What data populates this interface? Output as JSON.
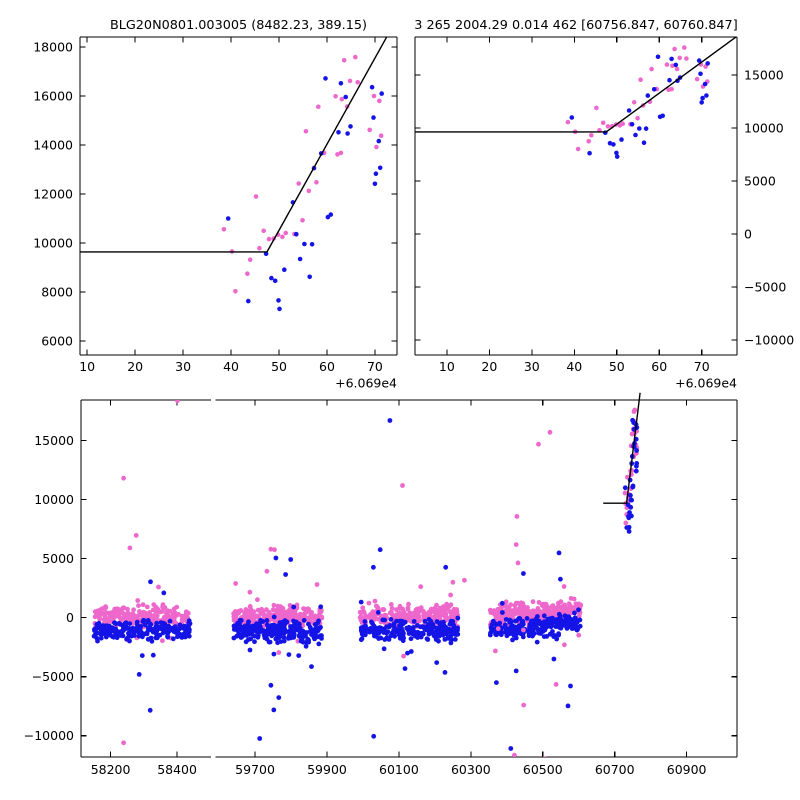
{
  "chart_data": {
    "type": "scatter",
    "description": "Microlensing light-curve fit figure: two zoomed event panels (top) and full multi-season light curve with broken x-axis (bottom)",
    "series_colors": {
      "magenta": "#EE68CC",
      "blue": "#1414E6",
      "model_line": "#000000"
    },
    "marker_radius": 2.3,
    "event_points": {
      "x_offset_base": 60690,
      "magenta": [
        [
          38.5,
          10560
        ],
        [
          40.2,
          9660
        ],
        [
          40.9,
          8030
        ],
        [
          43.4,
          8750
        ],
        [
          44.0,
          9320
        ],
        [
          45.2,
          11900
        ],
        [
          45.9,
          9790
        ],
        [
          46.8,
          10500
        ],
        [
          47.9,
          10160
        ],
        [
          48.9,
          10180
        ],
        [
          49.8,
          10340
        ],
        [
          50.7,
          10250
        ],
        [
          51.4,
          10410
        ],
        [
          53.2,
          10370
        ],
        [
          54.1,
          12430
        ],
        [
          54.9,
          10930
        ],
        [
          55.6,
          14560
        ],
        [
          56.2,
          12130
        ],
        [
          57.8,
          12480
        ],
        [
          58.2,
          15560
        ],
        [
          59.4,
          13680
        ],
        [
          61.8,
          15990
        ],
        [
          62.2,
          13620
        ],
        [
          62.9,
          13680
        ],
        [
          63.1,
          15870
        ],
        [
          63.6,
          17460
        ],
        [
          64.2,
          15570
        ],
        [
          64.8,
          16620
        ],
        [
          65.9,
          17590
        ],
        [
          66.4,
          16560
        ],
        [
          68.9,
          14620
        ],
        [
          69.8,
          16000
        ],
        [
          70.3,
          13920
        ],
        [
          70.9,
          15800
        ],
        [
          71.3,
          14380
        ]
      ],
      "blue": [
        [
          39.4,
          11000
        ],
        [
          43.6,
          7630
        ],
        [
          47.3,
          9560
        ],
        [
          48.4,
          8570
        ],
        [
          49.2,
          8460
        ],
        [
          49.9,
          7660
        ],
        [
          50.1,
          7310
        ],
        [
          51.1,
          8910
        ],
        [
          52.9,
          11660
        ],
        [
          53.6,
          10360
        ],
        [
          54.4,
          9350
        ],
        [
          55.3,
          9960
        ],
        [
          56.4,
          8620
        ],
        [
          56.9,
          9950
        ],
        [
          57.3,
          13060
        ],
        [
          58.8,
          13660
        ],
        [
          59.7,
          16720
        ],
        [
          60.2,
          11060
        ],
        [
          60.8,
          11160
        ],
        [
          62.4,
          14520
        ],
        [
          62.9,
          16520
        ],
        [
          63.9,
          15960
        ],
        [
          64.3,
          14470
        ],
        [
          64.9,
          14760
        ],
        [
          69.4,
          16360
        ],
        [
          69.7,
          15120
        ],
        [
          70.0,
          12420
        ],
        [
          70.2,
          12830
        ],
        [
          70.8,
          14160
        ],
        [
          71.1,
          13070
        ],
        [
          71.4,
          16100
        ]
      ]
    },
    "panels": {
      "top_left": {
        "title": "BLG20N0801.003005 (8482.23, 389.15)",
        "xlim": [
          8.5,
          74.6
        ],
        "ylim": [
          5430,
          18410
        ],
        "xticks": [
          10,
          20,
          30,
          40,
          50,
          60,
          70
        ],
        "yticks": [
          6000,
          8000,
          10000,
          12000,
          14000,
          16000,
          18000
        ],
        "x_offset_label": "+6.069e4",
        "ylabel_side": "left",
        "model_line": [
          [
            8.5,
            9640
          ],
          [
            47.5,
            9640
          ],
          [
            73.0,
            18600
          ]
        ]
      },
      "top_right": {
        "title": "3 265 2004.29 0.014 462 [60756.847, 60760.847]",
        "xlim": [
          2.5,
          78.3
        ],
        "ylim": [
          -11400,
          18590
        ],
        "xticks": [
          10,
          20,
          30,
          40,
          50,
          60,
          70
        ],
        "yticks": [
          -10000,
          -5000,
          0,
          5000,
          10000,
          15000
        ],
        "x_offset_label": "+6.069e4",
        "ylabel_side": "right",
        "model_line": [
          [
            2.5,
            9640
          ],
          [
            47.5,
            9640
          ],
          [
            78.6,
            18750
          ]
        ]
      },
      "bottom": {
        "ylim": [
          -11800,
          18440
        ],
        "yticks": [
          -10000,
          -5000,
          0,
          5000,
          10000,
          15000
        ],
        "panel_a": {
          "xlim": [
            58111,
            58502
          ],
          "xticks": [
            58200,
            58400
          ]
        },
        "panel_b": {
          "xlim": [
            59590,
            61040
          ],
          "xticks": [
            59700,
            59900,
            60100,
            60300,
            60500,
            60700,
            60900
          ]
        },
        "model_line": [
          [
            60668,
            9700
          ],
          [
            60733,
            9700
          ],
          [
            60770.5,
            19050
          ]
        ],
        "clusters": [
          {
            "x0": 58149,
            "x1": 58440,
            "seed": 101,
            "magenta": {
              "n": 215,
              "mean": 160,
              "sigma": 430,
              "trend": 0,
              "halo_n": 10,
              "halo_sigma": 1300
            },
            "blue": {
              "n": 205,
              "mean": -1100,
              "sigma": 400,
              "trend": 0,
              "halo_n": 13,
              "halo_sigma": 1500
            }
          },
          {
            "x0": 59639,
            "x1": 59886,
            "seed": 202,
            "magenta": {
              "n": 235,
              "mean": 140,
              "sigma": 430,
              "trend": 0,
              "halo_n": 11,
              "halo_sigma": 1400
            },
            "blue": {
              "n": 225,
              "mean": -1150,
              "sigma": 420,
              "trend": 0,
              "halo_n": 16,
              "halo_sigma": 1600
            }
          },
          {
            "x0": 59992,
            "x1": 60264,
            "seed": 303,
            "magenta": {
              "n": 225,
              "mean": 200,
              "sigma": 430,
              "trend": 0,
              "halo_n": 10,
              "halo_sigma": 1300
            },
            "blue": {
              "n": 215,
              "mean": -1050,
              "sigma": 410,
              "trend": 0,
              "halo_n": 13,
              "halo_sigma": 1500
            }
          },
          {
            "x0": 60353,
            "x1": 60606,
            "seed": 404,
            "magenta": {
              "n": 235,
              "mean": 450,
              "sigma": 420,
              "trend": 700,
              "halo_n": 12,
              "halo_sigma": 1400
            },
            "blue": {
              "n": 225,
              "mean": -800,
              "sigma": 400,
              "trend": 800,
              "halo_n": 15,
              "halo_sigma": 1500
            }
          }
        ],
        "outliers": {
          "magenta": [
            [
              58401,
              18380
            ],
            [
              58239,
              11820
            ],
            [
              58277,
              6970
            ],
            [
              58258,
              5910
            ],
            [
              58239,
              -10600
            ],
            [
              58344,
              2600
            ],
            [
              59646,
              2900
            ],
            [
              59744,
              5800
            ],
            [
              59754,
              5760
            ],
            [
              59733,
              3930
            ],
            [
              59766,
              -2950
            ],
            [
              60110,
              11200
            ],
            [
              60250,
              3000
            ],
            [
              60282,
              3170
            ],
            [
              60113,
              -3250
            ],
            [
              60520,
              15700
            ],
            [
              60488,
              14700
            ],
            [
              60428,
              8580
            ],
            [
              60426,
              6190
            ],
            [
              60431,
              4640
            ],
            [
              60447,
              -7400
            ],
            [
              60537,
              -5650
            ],
            [
              60505,
              -11930
            ],
            [
              60421,
              -11650
            ],
            [
              60376,
              -930
            ],
            [
              60446,
              -1040
            ],
            [
              60560,
              -2300
            ]
          ],
          "blue": [
            [
              60075,
              16700
            ],
            [
              58286,
              -4800
            ],
            [
              58319,
              -7840
            ],
            [
              58320,
              3040
            ],
            [
              58360,
              2100
            ],
            [
              59713,
              -10230
            ],
            [
              59744,
              -5730
            ],
            [
              59766,
              -6770
            ],
            [
              59752,
              -7810
            ],
            [
              59857,
              -4140
            ],
            [
              59799,
              4930
            ],
            [
              59758,
              5060
            ],
            [
              59785,
              3660
            ],
            [
              60048,
              5760
            ],
            [
              60029,
              4270
            ],
            [
              60230,
              4270
            ],
            [
              60030,
              -10050
            ],
            [
              60117,
              -4310
            ],
            [
              60205,
              -3800
            ],
            [
              60545,
              5490
            ],
            [
              60446,
              3740
            ],
            [
              60371,
              -5500
            ],
            [
              60577,
              -5790
            ],
            [
              60570,
              -7470
            ],
            [
              60411,
              -11080
            ],
            [
              60531,
              -3500
            ],
            [
              60426,
              -4510
            ]
          ]
        }
      }
    }
  }
}
